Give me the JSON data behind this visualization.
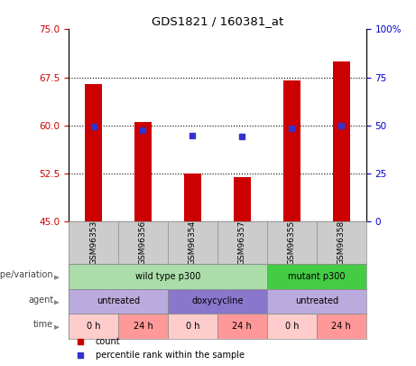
{
  "title": "GDS1821 / 160381_at",
  "samples": [
    "GSM96353",
    "GSM96356",
    "GSM96354",
    "GSM96357",
    "GSM96355",
    "GSM96358"
  ],
  "bar_bottoms": [
    45,
    45,
    45,
    45,
    45,
    45
  ],
  "bar_tops": [
    66.5,
    60.5,
    52.5,
    52.0,
    67.0,
    70.0
  ],
  "bar_color": "#cc0000",
  "dot_values": [
    59.8,
    59.3,
    58.5,
    58.3,
    59.5,
    60.0
  ],
  "dot_color": "#3333cc",
  "ylim_left": [
    45,
    75
  ],
  "yticks_left": [
    45,
    52.5,
    60,
    67.5,
    75
  ],
  "ylim_right": [
    0,
    100
  ],
  "yticks_right": [
    0,
    25,
    50,
    75,
    100
  ],
  "ytick_labels_right": [
    "0",
    "25",
    "50",
    "75",
    "100%"
  ],
  "grid_values": [
    52.5,
    60.0,
    67.5
  ],
  "left_tick_color": "#cc0000",
  "right_tick_color": "#0000cc",
  "annotation_rows": [
    {
      "label": "genotype/variation",
      "segments": [
        {
          "text": "wild type p300",
          "span": [
            0,
            4
          ],
          "color": "#aaddaa"
        },
        {
          "text": "mutant p300",
          "span": [
            4,
            6
          ],
          "color": "#44cc44"
        }
      ]
    },
    {
      "label": "agent",
      "segments": [
        {
          "text": "untreated",
          "span": [
            0,
            2
          ],
          "color": "#bbaadd"
        },
        {
          "text": "doxycycline",
          "span": [
            2,
            4
          ],
          "color": "#8877cc"
        },
        {
          "text": "untreated",
          "span": [
            4,
            6
          ],
          "color": "#bbaadd"
        }
      ]
    },
    {
      "label": "time",
      "segments": [
        {
          "text": "0 h",
          "span": [
            0,
            1
          ],
          "color": "#ffcccc"
        },
        {
          "text": "24 h",
          "span": [
            1,
            2
          ],
          "color": "#ff9999"
        },
        {
          "text": "0 h",
          "span": [
            2,
            3
          ],
          "color": "#ffcccc"
        },
        {
          "text": "24 h",
          "span": [
            3,
            4
          ],
          "color": "#ff9999"
        },
        {
          "text": "0 h",
          "span": [
            4,
            5
          ],
          "color": "#ffcccc"
        },
        {
          "text": "24 h",
          "span": [
            5,
            6
          ],
          "color": "#ff9999"
        }
      ]
    }
  ],
  "legend_items": [
    {
      "label": "count",
      "color": "#cc0000"
    },
    {
      "label": "percentile rank within the sample",
      "color": "#3333cc"
    }
  ],
  "sample_bg_color": "#cccccc",
  "bg_color": "#ffffff",
  "bar_width": 0.35
}
